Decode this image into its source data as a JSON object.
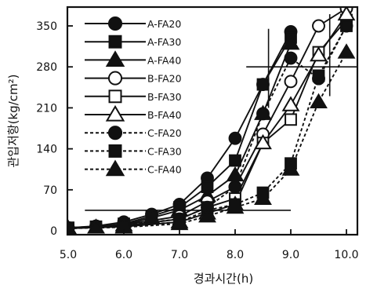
{
  "chart_data": {
    "type": "line",
    "xlabel": "경과시간(h)",
    "ylabel": "관입저항(kg/cm²)",
    "xlim": [
      5.0,
      10.5
    ],
    "ylim": [
      0,
      370
    ],
    "xticks": [
      "5.0",
      "6.0",
      "7.0",
      "8.0",
      "9.0",
      "10.0"
    ],
    "yticks": [
      "0",
      "70",
      "140",
      "210",
      "280",
      "350"
    ],
    "grid": false,
    "legend_position": "top-left",
    "reference_lines": [
      {
        "orientation": "horizontal",
        "value": 35,
        "from_x": 5.3,
        "to_x": 9.0
      },
      {
        "orientation": "horizontal",
        "value": 280,
        "from_x": 8.2,
        "to_x": 10.2
      },
      {
        "orientation": "vertical",
        "value": 8.6,
        "from_y": 210,
        "to_y": 345
      },
      {
        "orientation": "vertical",
        "value": 9.7,
        "from_y": 230,
        "to_y": 370
      }
    ],
    "series": [
      {
        "name": "A-FA20",
        "marker": "circle",
        "fill": "filled",
        "dash": "solid",
        "x": [
          5.0,
          5.5,
          6.0,
          6.5,
          7.0,
          7.5,
          8.0,
          8.5,
          9.0
        ],
        "y": [
          5,
          8,
          15,
          28,
          45,
          90,
          158,
          250,
          340
        ]
      },
      {
        "name": "A-FA30",
        "marker": "square",
        "fill": "filled",
        "dash": "solid",
        "x": [
          5.0,
          5.5,
          6.0,
          6.5,
          7.0,
          7.5,
          8.0,
          8.5,
          9.0
        ],
        "y": [
          5,
          7,
          12,
          25,
          40,
          75,
          120,
          250,
          330
        ]
      },
      {
        "name": "A-FA40",
        "marker": "triangle",
        "fill": "filled",
        "dash": "solid",
        "x": [
          5.0,
          5.5,
          6.0,
          6.5,
          7.0,
          7.5,
          8.0,
          8.5,
          9.0
        ],
        "y": [
          4,
          6,
          10,
          22,
          35,
          60,
          95,
          200,
          320
        ]
      },
      {
        "name": "B-FA20",
        "marker": "circle",
        "fill": "open",
        "dash": "solid",
        "x": [
          5.0,
          6.0,
          7.0,
          7.5,
          8.0,
          8.5,
          9.0,
          9.5,
          10.0
        ],
        "y": [
          5,
          10,
          25,
          50,
          75,
          165,
          255,
          350,
          380
        ]
      },
      {
        "name": "B-FA30",
        "marker": "square",
        "fill": "open",
        "dash": "solid",
        "x": [
          5.0,
          6.0,
          7.0,
          7.5,
          8.0,
          8.5,
          9.0,
          9.5,
          10.0
        ],
        "y": [
          5,
          8,
          20,
          40,
          55,
          150,
          190,
          305,
          360
        ]
      },
      {
        "name": "B-FA40",
        "marker": "triangle",
        "fill": "open",
        "dash": "solid",
        "x": [
          5.0,
          6.0,
          7.0,
          7.5,
          8.0,
          8.5,
          9.0,
          9.5,
          10.0
        ],
        "y": [
          4,
          7,
          15,
          30,
          45,
          150,
          215,
          300,
          370
        ]
      },
      {
        "name": "C-FA20",
        "marker": "circle",
        "fill": "filled",
        "dash": "dashed",
        "x": [
          5.0,
          6.0,
          7.0,
          7.5,
          8.0,
          8.5,
          9.0,
          9.5,
          10.0
        ],
        "y": [
          5,
          10,
          20,
          40,
          75,
          200,
          295,
          260,
          350
        ]
      },
      {
        "name": "C-FA30",
        "marker": "square",
        "fill": "filled",
        "dash": "dashed",
        "x": [
          5.0,
          6.0,
          7.0,
          7.5,
          8.0,
          8.5,
          9.0,
          9.5,
          10.0
        ],
        "y": [
          5,
          8,
          15,
          35,
          45,
          65,
          115,
          265,
          350
        ]
      },
      {
        "name": "C-FA40",
        "marker": "triangle",
        "fill": "filled",
        "dash": "dashed",
        "x": [
          5.0,
          6.0,
          7.0,
          7.5,
          8.0,
          8.5,
          9.0,
          9.5,
          10.0
        ],
        "y": [
          4,
          6,
          12,
          25,
          40,
          55,
          105,
          220,
          305
        ]
      }
    ]
  }
}
